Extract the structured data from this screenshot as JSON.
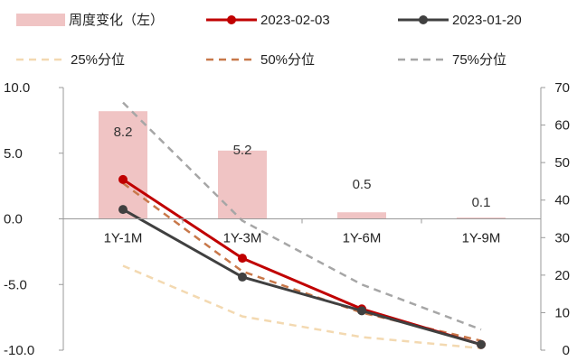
{
  "chart_data": {
    "type": "bar",
    "categories": [
      "1Y-1M",
      "1Y-3M",
      "1Y-6M",
      "1Y-9M"
    ],
    "y_left": {
      "min": -10,
      "max": 10,
      "step": 5,
      "tick_labels": [
        "10.0",
        "5.0",
        "0.0",
        "-5.0",
        "-10.0"
      ]
    },
    "y_right": {
      "min": 0,
      "max": 70,
      "step": 10,
      "tick_labels": [
        "70",
        "60",
        "50",
        "40",
        "30",
        "20",
        "10",
        "0"
      ]
    },
    "series": [
      {
        "name": "周度变化（左）",
        "kind": "bar",
        "axis": "left",
        "color": "#f0c4c4",
        "values": [
          8.2,
          5.2,
          0.5,
          0.1
        ],
        "data_labels": [
          "8.2",
          "5.2",
          "0.5",
          "0.1"
        ]
      },
      {
        "name": "2023-02-03",
        "kind": "line",
        "axis": "right",
        "color": "#c00000",
        "style": "solid",
        "marker": true,
        "values": [
          45.5,
          24.5,
          11,
          1.5
        ]
      },
      {
        "name": "2023-01-20",
        "kind": "line",
        "axis": "right",
        "color": "#404040",
        "style": "solid",
        "marker": true,
        "values": [
          37.5,
          19.5,
          10.5,
          1.5
        ]
      },
      {
        "name": "25%分位",
        "kind": "line",
        "axis": "right",
        "color": "#f3d9b1",
        "style": "dashed",
        "marker": false,
        "values": [
          22.5,
          9,
          3.5,
          0.5
        ]
      },
      {
        "name": "50%分位",
        "kind": "line",
        "axis": "right",
        "color": "#c8784a",
        "style": "dashed",
        "marker": false,
        "values": [
          44.5,
          21,
          10,
          2.5
        ]
      },
      {
        "name": "75%分位",
        "kind": "line",
        "axis": "right",
        "color": "#a6a6a6",
        "style": "dashed",
        "marker": false,
        "values": [
          66,
          34.5,
          17.5,
          5.5
        ]
      }
    ],
    "legend_position": "top",
    "grid": false
  }
}
